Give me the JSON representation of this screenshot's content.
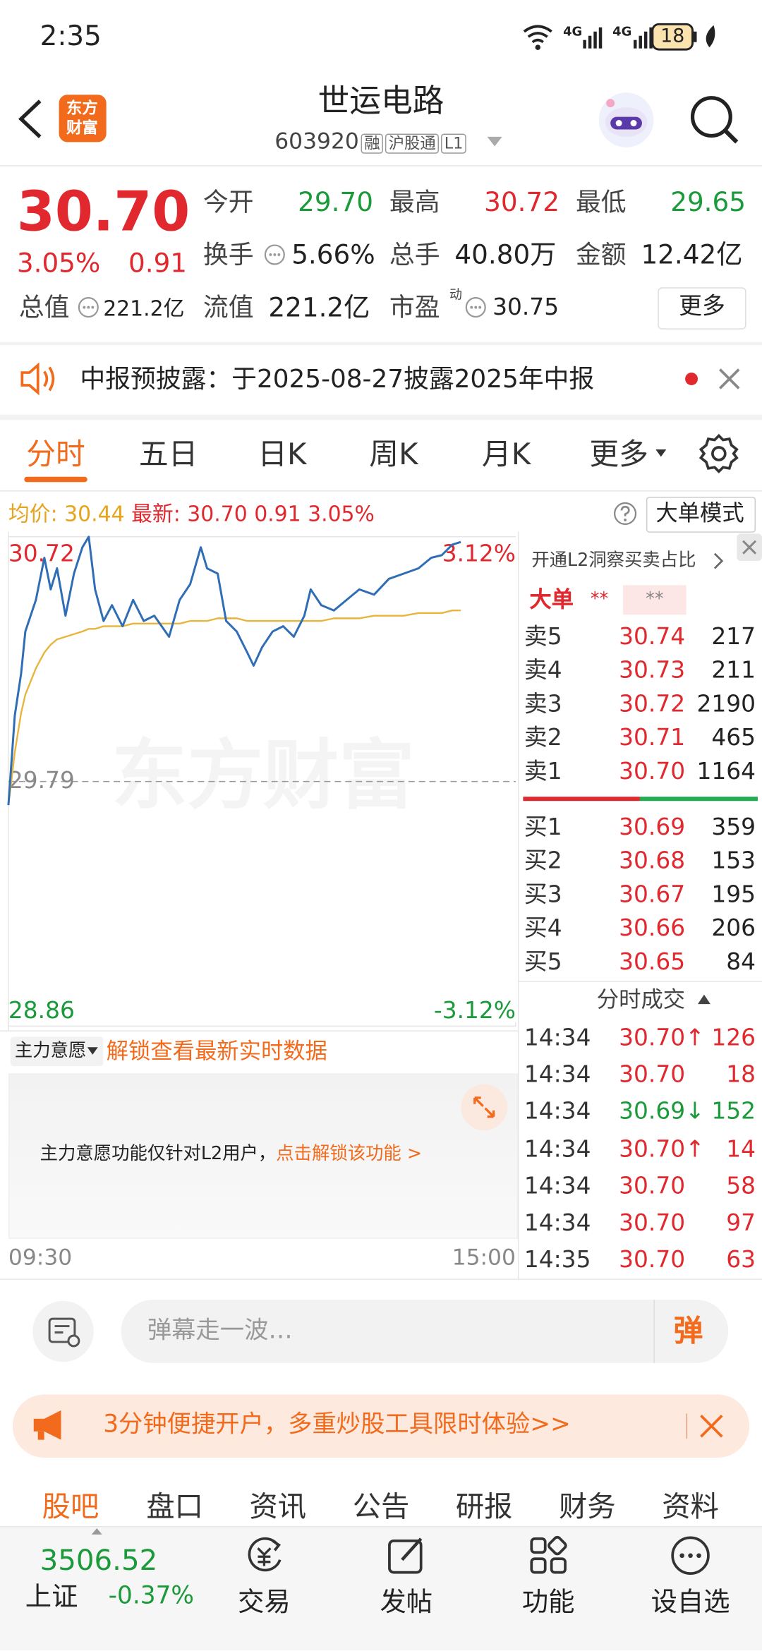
{
  "status_bar": {
    "time": "2:35",
    "net_1": "4G",
    "net_2": "4G",
    "battery": "18"
  },
  "header": {
    "logo": [
      "东方",
      "财富"
    ],
    "title": "世运电路",
    "code": "603920",
    "tags": [
      "融",
      "沪股通",
      "L1"
    ]
  },
  "quote": {
    "price": "30.70",
    "change_pct": "3.05%",
    "change": "0.91",
    "fields": [
      {
        "label": "今开",
        "value": "29.70",
        "color": "#1a9a3a"
      },
      {
        "label": "最高",
        "value": "30.72",
        "color": "#e0282e"
      },
      {
        "label": "最低",
        "value": "29.65",
        "color": "#1a9a3a"
      },
      {
        "label": "换手",
        "value": "5.66%"
      },
      {
        "label": "总手",
        "value": "40.80万"
      },
      {
        "label": "金额",
        "value": "12.42亿"
      },
      {
        "label": "总值",
        "value": "221.2亿"
      },
      {
        "label": "流值",
        "value": "221.2亿"
      },
      {
        "label": "市盈",
        "sup": "动",
        "value": "30.75"
      }
    ],
    "more": "更多"
  },
  "notice": {
    "text": "中报预披露：于2025-08-27披露2025年中报"
  },
  "tabs": [
    "分时",
    "五日",
    "日K",
    "周K",
    "月K",
    "更多"
  ],
  "info_bar": {
    "avg_label": "均价:",
    "avg": "30.44",
    "latest_label": "最新:",
    "latest": "30.70",
    "change": "0.91",
    "change_pct": "3.05%",
    "mode": "大单模式"
  },
  "watermark": "东方财富",
  "chart_data": {
    "type": "line",
    "xlim": [
      0,
      240
    ],
    "xticks": [
      {
        "value": 0,
        "label": "09:30"
      },
      {
        "value": 240,
        "label": "15:00"
      }
    ],
    "ylim": [
      28.86,
      30.72
    ],
    "yticks": [
      28.86,
      29.79,
      30.72
    ],
    "y2lim": [
      -3.12,
      3.12
    ],
    "y2ticks": [
      {
        "value": 3.12,
        "label": "3.12%"
      },
      {
        "value": -3.12,
        "label": "-3.12%"
      }
    ],
    "x": [
      0,
      3,
      6,
      8,
      13,
      17,
      20,
      23,
      27,
      31,
      35,
      38,
      41,
      45,
      49,
      54,
      59,
      64,
      69,
      76,
      81,
      86,
      91,
      94,
      99,
      103,
      108,
      113,
      116,
      120,
      125,
      130,
      135,
      140,
      143,
      148,
      154,
      160,
      166,
      173,
      180,
      187,
      194,
      200,
      205,
      210,
      214
    ],
    "series": [
      {
        "color": "#2f6db5",
        "values": [
          29.7,
          30.04,
          30.2,
          30.36,
          30.48,
          30.64,
          30.52,
          30.6,
          30.42,
          30.58,
          30.68,
          30.72,
          30.52,
          30.4,
          30.46,
          30.38,
          30.48,
          30.4,
          30.42,
          30.34,
          30.48,
          30.54,
          30.68,
          30.6,
          30.58,
          30.4,
          30.36,
          30.28,
          30.23,
          30.3,
          30.36,
          30.38,
          30.34,
          30.42,
          30.52,
          30.46,
          30.44,
          30.48,
          30.52,
          30.5,
          30.56,
          30.58,
          30.6,
          30.64,
          30.65,
          30.69,
          30.7
        ]
      },
      {
        "color": "#e7b53c",
        "values": [
          29.7,
          29.9,
          30.05,
          30.12,
          30.22,
          30.28,
          30.31,
          30.33,
          30.34,
          30.35,
          30.36,
          30.37,
          30.37,
          30.38,
          30.38,
          30.38,
          30.39,
          30.39,
          30.39,
          30.39,
          30.39,
          30.4,
          30.4,
          30.4,
          30.41,
          30.41,
          30.41,
          30.4,
          30.4,
          30.4,
          30.4,
          30.4,
          30.4,
          30.4,
          30.4,
          30.4,
          30.41,
          30.41,
          30.41,
          30.42,
          30.42,
          30.42,
          30.43,
          30.43,
          30.43,
          30.44,
          30.44
        ]
      }
    ]
  },
  "l2_panel": {
    "title": "开通L2洞察买卖占比",
    "big_order": "大单",
    "mask_1": "**",
    "mask_2": "**"
  },
  "order_book": {
    "sell": [
      {
        "label": "卖5",
        "price": "30.74",
        "volume": "217",
        "color": "#e0282e"
      },
      {
        "label": "卖4",
        "price": "30.73",
        "volume": "211",
        "color": "#e0282e"
      },
      {
        "label": "卖3",
        "price": "30.72",
        "volume": "2190",
        "color": "#e0282e"
      },
      {
        "label": "卖2",
        "price": "30.71",
        "volume": "465",
        "color": "#e0282e"
      },
      {
        "label": "卖1",
        "price": "30.70",
        "volume": "1164",
        "color": "#e0282e"
      }
    ],
    "buy": [
      {
        "label": "买1",
        "price": "30.69",
        "volume": "359",
        "color": "#e0282e"
      },
      {
        "label": "买2",
        "price": "30.68",
        "volume": "153",
        "color": "#e0282e"
      },
      {
        "label": "买3",
        "price": "30.67",
        "volume": "195",
        "color": "#e0282e"
      },
      {
        "label": "买4",
        "price": "30.66",
        "volume": "206",
        "color": "#e0282e"
      },
      {
        "label": "买5",
        "price": "30.65",
        "volume": "84",
        "color": "#e0282e"
      }
    ]
  },
  "trades": {
    "title": "分时成交",
    "rows": [
      {
        "time": "14:34",
        "price": "30.70↑",
        "volume": "126",
        "color": "#e0282e"
      },
      {
        "time": "14:34",
        "price": "30.70",
        "volume": "18",
        "color": "#e0282e"
      },
      {
        "time": "14:34",
        "price": "30.69↓",
        "volume": "152",
        "color": "#1a9a3a"
      },
      {
        "time": "14:34",
        "price": "30.70↑",
        "volume": "14",
        "color": "#e0282e"
      },
      {
        "time": "14:34",
        "price": "30.70",
        "volume": "58",
        "color": "#e0282e"
      },
      {
        "time": "14:34",
        "price": "30.70",
        "volume": "97",
        "color": "#e0282e"
      },
      {
        "time": "14:35",
        "price": "30.70",
        "volume": "63",
        "color": "#e0282e"
      }
    ]
  },
  "main_force": {
    "selector": "主力意愿",
    "unlock": "解锁查看最新实时数据",
    "note": "主力意愿功能仅针对L2用户，",
    "note_link": "点击解锁该功能 >"
  },
  "comment_bar": {
    "placeholder": "弹幕走一波…",
    "button": "弹"
  },
  "ad": {
    "text": "3分钟便捷开户，多重炒股工具限时体验>>"
  },
  "bottom_tabs": [
    "股吧",
    "盘口",
    "资讯",
    "公告",
    "研报",
    "财务",
    "资料"
  ],
  "nav": {
    "index_value": "3506.52",
    "index_name": "上证",
    "index_change": "-0.37%",
    "items": [
      "交易",
      "发帖",
      "功能",
      "设自选"
    ]
  }
}
